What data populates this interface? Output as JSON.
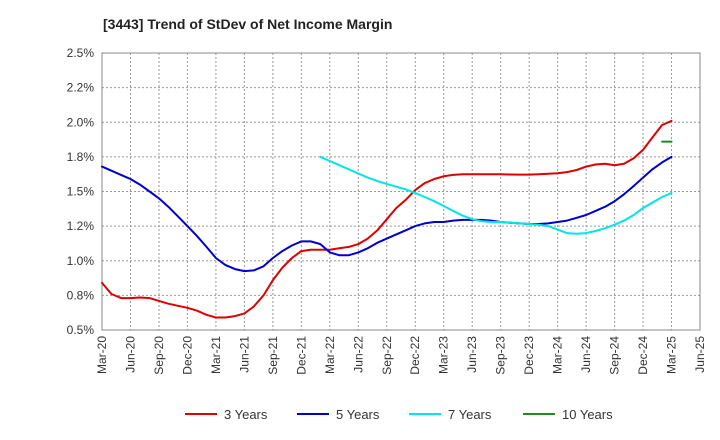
{
  "chart_data": {
    "type": "line",
    "title": "[3443]  Trend of StDev of Net Income Margin",
    "xlabel": "",
    "ylabel": "",
    "y_tick_labels": [
      "0.5%",
      "0.8%",
      "1.0%",
      "1.2%",
      "1.5%",
      "1.8%",
      "2.0%",
      "2.2%",
      "2.5%"
    ],
    "y_tick_values": [
      0.5,
      0.75,
      1.0,
      1.25,
      1.5,
      1.75,
      2.0,
      2.25,
      2.5
    ],
    "ylim": [
      0.5,
      2.5
    ],
    "x_tick_labels": [
      "Mar-20",
      "Jun-20",
      "Sep-20",
      "Dec-20",
      "Mar-21",
      "Jun-21",
      "Sep-21",
      "Dec-21",
      "Mar-22",
      "Jun-22",
      "Sep-22",
      "Dec-22",
      "Mar-23",
      "Jun-23",
      "Sep-23",
      "Dec-23",
      "Mar-24",
      "Jun-24",
      "Sep-24",
      "Dec-24",
      "Mar-25",
      "Jun-25"
    ],
    "xlim": [
      0,
      21
    ],
    "grid": true,
    "legend_position": "bottom",
    "series": [
      {
        "name": "3 Years",
        "color": "#dd0000",
        "points": [
          [
            0,
            0.84
          ],
          [
            0.33,
            0.76
          ],
          [
            0.67,
            0.73
          ],
          [
            1,
            0.73
          ],
          [
            1.33,
            0.735
          ],
          [
            1.67,
            0.73
          ],
          [
            2,
            0.71
          ],
          [
            2.33,
            0.69
          ],
          [
            2.67,
            0.675
          ],
          [
            3,
            0.66
          ],
          [
            3.33,
            0.64
          ],
          [
            3.67,
            0.61
          ],
          [
            4,
            0.59
          ],
          [
            4.33,
            0.59
          ],
          [
            4.67,
            0.6
          ],
          [
            5,
            0.62
          ],
          [
            5.33,
            0.67
          ],
          [
            5.67,
            0.75
          ],
          [
            6,
            0.86
          ],
          [
            6.33,
            0.95
          ],
          [
            6.67,
            1.02
          ],
          [
            7,
            1.07
          ],
          [
            7.33,
            1.08
          ],
          [
            7.67,
            1.08
          ],
          [
            8,
            1.08
          ],
          [
            8.33,
            1.09
          ],
          [
            8.67,
            1.1
          ],
          [
            9,
            1.12
          ],
          [
            9.33,
            1.16
          ],
          [
            9.67,
            1.22
          ],
          [
            10,
            1.3
          ],
          [
            10.33,
            1.38
          ],
          [
            10.67,
            1.44
          ],
          [
            11,
            1.51
          ],
          [
            11.33,
            1.56
          ],
          [
            11.67,
            1.59
          ],
          [
            12,
            1.61
          ],
          [
            12.33,
            1.62
          ],
          [
            12.67,
            1.625
          ],
          [
            13,
            1.625
          ],
          [
            13.33,
            1.625
          ],
          [
            13.67,
            1.625
          ],
          [
            14,
            1.625
          ],
          [
            14.33,
            1.623
          ],
          [
            14.67,
            1.622
          ],
          [
            15,
            1.622
          ],
          [
            15.33,
            1.625
          ],
          [
            15.67,
            1.628
          ],
          [
            16,
            1.632
          ],
          [
            16.33,
            1.64
          ],
          [
            16.67,
            1.655
          ],
          [
            17,
            1.68
          ],
          [
            17.33,
            1.695
          ],
          [
            17.67,
            1.7
          ],
          [
            18,
            1.69
          ],
          [
            18.33,
            1.7
          ],
          [
            18.67,
            1.74
          ],
          [
            19,
            1.8
          ],
          [
            19.33,
            1.89
          ],
          [
            19.67,
            1.98
          ],
          [
            20,
            2.01
          ]
        ]
      },
      {
        "name": "5 Years",
        "color": "#0000cc",
        "points": [
          [
            0,
            1.68
          ],
          [
            0.33,
            1.65
          ],
          [
            0.67,
            1.62
          ],
          [
            1,
            1.59
          ],
          [
            1.33,
            1.55
          ],
          [
            1.67,
            1.5
          ],
          [
            2,
            1.45
          ],
          [
            2.33,
            1.39
          ],
          [
            2.67,
            1.32
          ],
          [
            3,
            1.25
          ],
          [
            3.33,
            1.18
          ],
          [
            3.67,
            1.1
          ],
          [
            4,
            1.02
          ],
          [
            4.33,
            0.97
          ],
          [
            4.67,
            0.94
          ],
          [
            5,
            0.925
          ],
          [
            5.33,
            0.93
          ],
          [
            5.67,
            0.96
          ],
          [
            6,
            1.02
          ],
          [
            6.33,
            1.07
          ],
          [
            6.67,
            1.11
          ],
          [
            7,
            1.14
          ],
          [
            7.33,
            1.14
          ],
          [
            7.67,
            1.12
          ],
          [
            8,
            1.06
          ],
          [
            8.33,
            1.04
          ],
          [
            8.67,
            1.04
          ],
          [
            9,
            1.06
          ],
          [
            9.33,
            1.09
          ],
          [
            9.67,
            1.13
          ],
          [
            10,
            1.16
          ],
          [
            10.33,
            1.19
          ],
          [
            10.67,
            1.22
          ],
          [
            11,
            1.25
          ],
          [
            11.33,
            1.27
          ],
          [
            11.67,
            1.28
          ],
          [
            12,
            1.28
          ],
          [
            12.33,
            1.29
          ],
          [
            12.67,
            1.295
          ],
          [
            13,
            1.295
          ],
          [
            13.33,
            1.295
          ],
          [
            13.67,
            1.29
          ],
          [
            14,
            1.28
          ],
          [
            14.33,
            1.275
          ],
          [
            14.67,
            1.27
          ],
          [
            15,
            1.265
          ],
          [
            15.33,
            1.265
          ],
          [
            15.67,
            1.27
          ],
          [
            16,
            1.28
          ],
          [
            16.33,
            1.29
          ],
          [
            16.67,
            1.31
          ],
          [
            17,
            1.33
          ],
          [
            17.33,
            1.36
          ],
          [
            17.67,
            1.39
          ],
          [
            18,
            1.43
          ],
          [
            18.33,
            1.48
          ],
          [
            18.67,
            1.54
          ],
          [
            19,
            1.6
          ],
          [
            19.33,
            1.66
          ],
          [
            19.67,
            1.71
          ],
          [
            20,
            1.75
          ]
        ]
      },
      {
        "name": "7 Years",
        "color": "#00e5e5",
        "points": [
          [
            7.67,
            1.75
          ],
          [
            8,
            1.72
          ],
          [
            8.33,
            1.69
          ],
          [
            8.67,
            1.66
          ],
          [
            9,
            1.63
          ],
          [
            9.33,
            1.6
          ],
          [
            9.67,
            1.575
          ],
          [
            10,
            1.555
          ],
          [
            10.33,
            1.535
          ],
          [
            10.67,
            1.515
          ],
          [
            11,
            1.49
          ],
          [
            11.33,
            1.46
          ],
          [
            11.67,
            1.43
          ],
          [
            12,
            1.395
          ],
          [
            12.33,
            1.36
          ],
          [
            12.67,
            1.325
          ],
          [
            13,
            1.3
          ],
          [
            13.33,
            1.285
          ],
          [
            13.67,
            1.28
          ],
          [
            14,
            1.28
          ],
          [
            14.33,
            1.275
          ],
          [
            14.67,
            1.27
          ],
          [
            15,
            1.265
          ],
          [
            15.33,
            1.26
          ],
          [
            15.67,
            1.25
          ],
          [
            16,
            1.225
          ],
          [
            16.33,
            1.2
          ],
          [
            16.67,
            1.195
          ],
          [
            17,
            1.2
          ],
          [
            17.33,
            1.215
          ],
          [
            17.67,
            1.235
          ],
          [
            18,
            1.26
          ],
          [
            18.33,
            1.29
          ],
          [
            18.67,
            1.33
          ],
          [
            19,
            1.38
          ],
          [
            19.33,
            1.42
          ],
          [
            19.67,
            1.46
          ],
          [
            20,
            1.49
          ]
        ]
      },
      {
        "name": "10 Years",
        "color": "#228b22",
        "points": [
          [
            19.67,
            1.86
          ],
          [
            20,
            1.86
          ]
        ]
      }
    ]
  }
}
